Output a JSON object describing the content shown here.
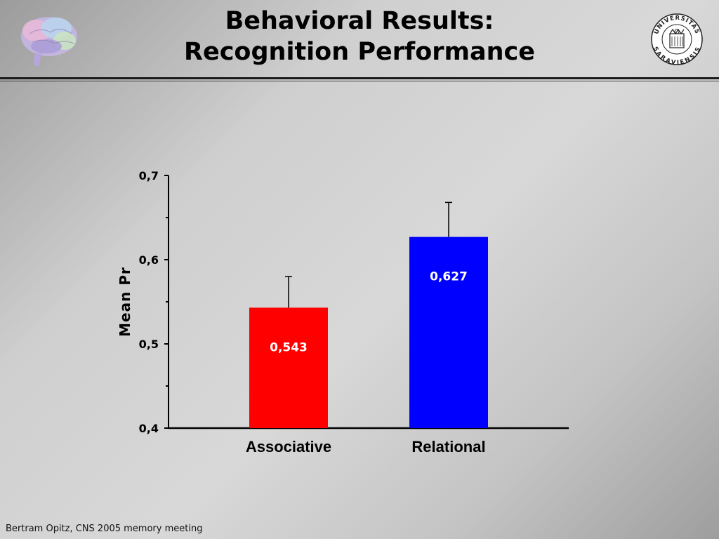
{
  "slide": {
    "title_line1": "Behavioral Results:",
    "title_line2": "Recognition Performance",
    "footer": "Bertram Opitz, CNS 2005 memory meeting",
    "seal_text_top": "UNIVERSITAS",
    "seal_text_bottom": "SARAVIENSIS"
  },
  "chart_data": {
    "type": "bar",
    "categories": [
      "Associative",
      "Relational"
    ],
    "values": [
      0.543,
      0.627
    ],
    "value_labels": [
      "0,543",
      "0,627"
    ],
    "error_upper": [
      0.58,
      0.668
    ],
    "colors": [
      "#ff0000",
      "#0000ff"
    ],
    "ylabel": "Mean Pr",
    "ylim": [
      0.4,
      0.7
    ],
    "yticks": [
      0.4,
      0.5,
      0.6,
      0.7
    ],
    "ytick_labels": [
      "0,4",
      "0,5",
      "0,6",
      "0,7"
    ],
    "grid": false
  }
}
